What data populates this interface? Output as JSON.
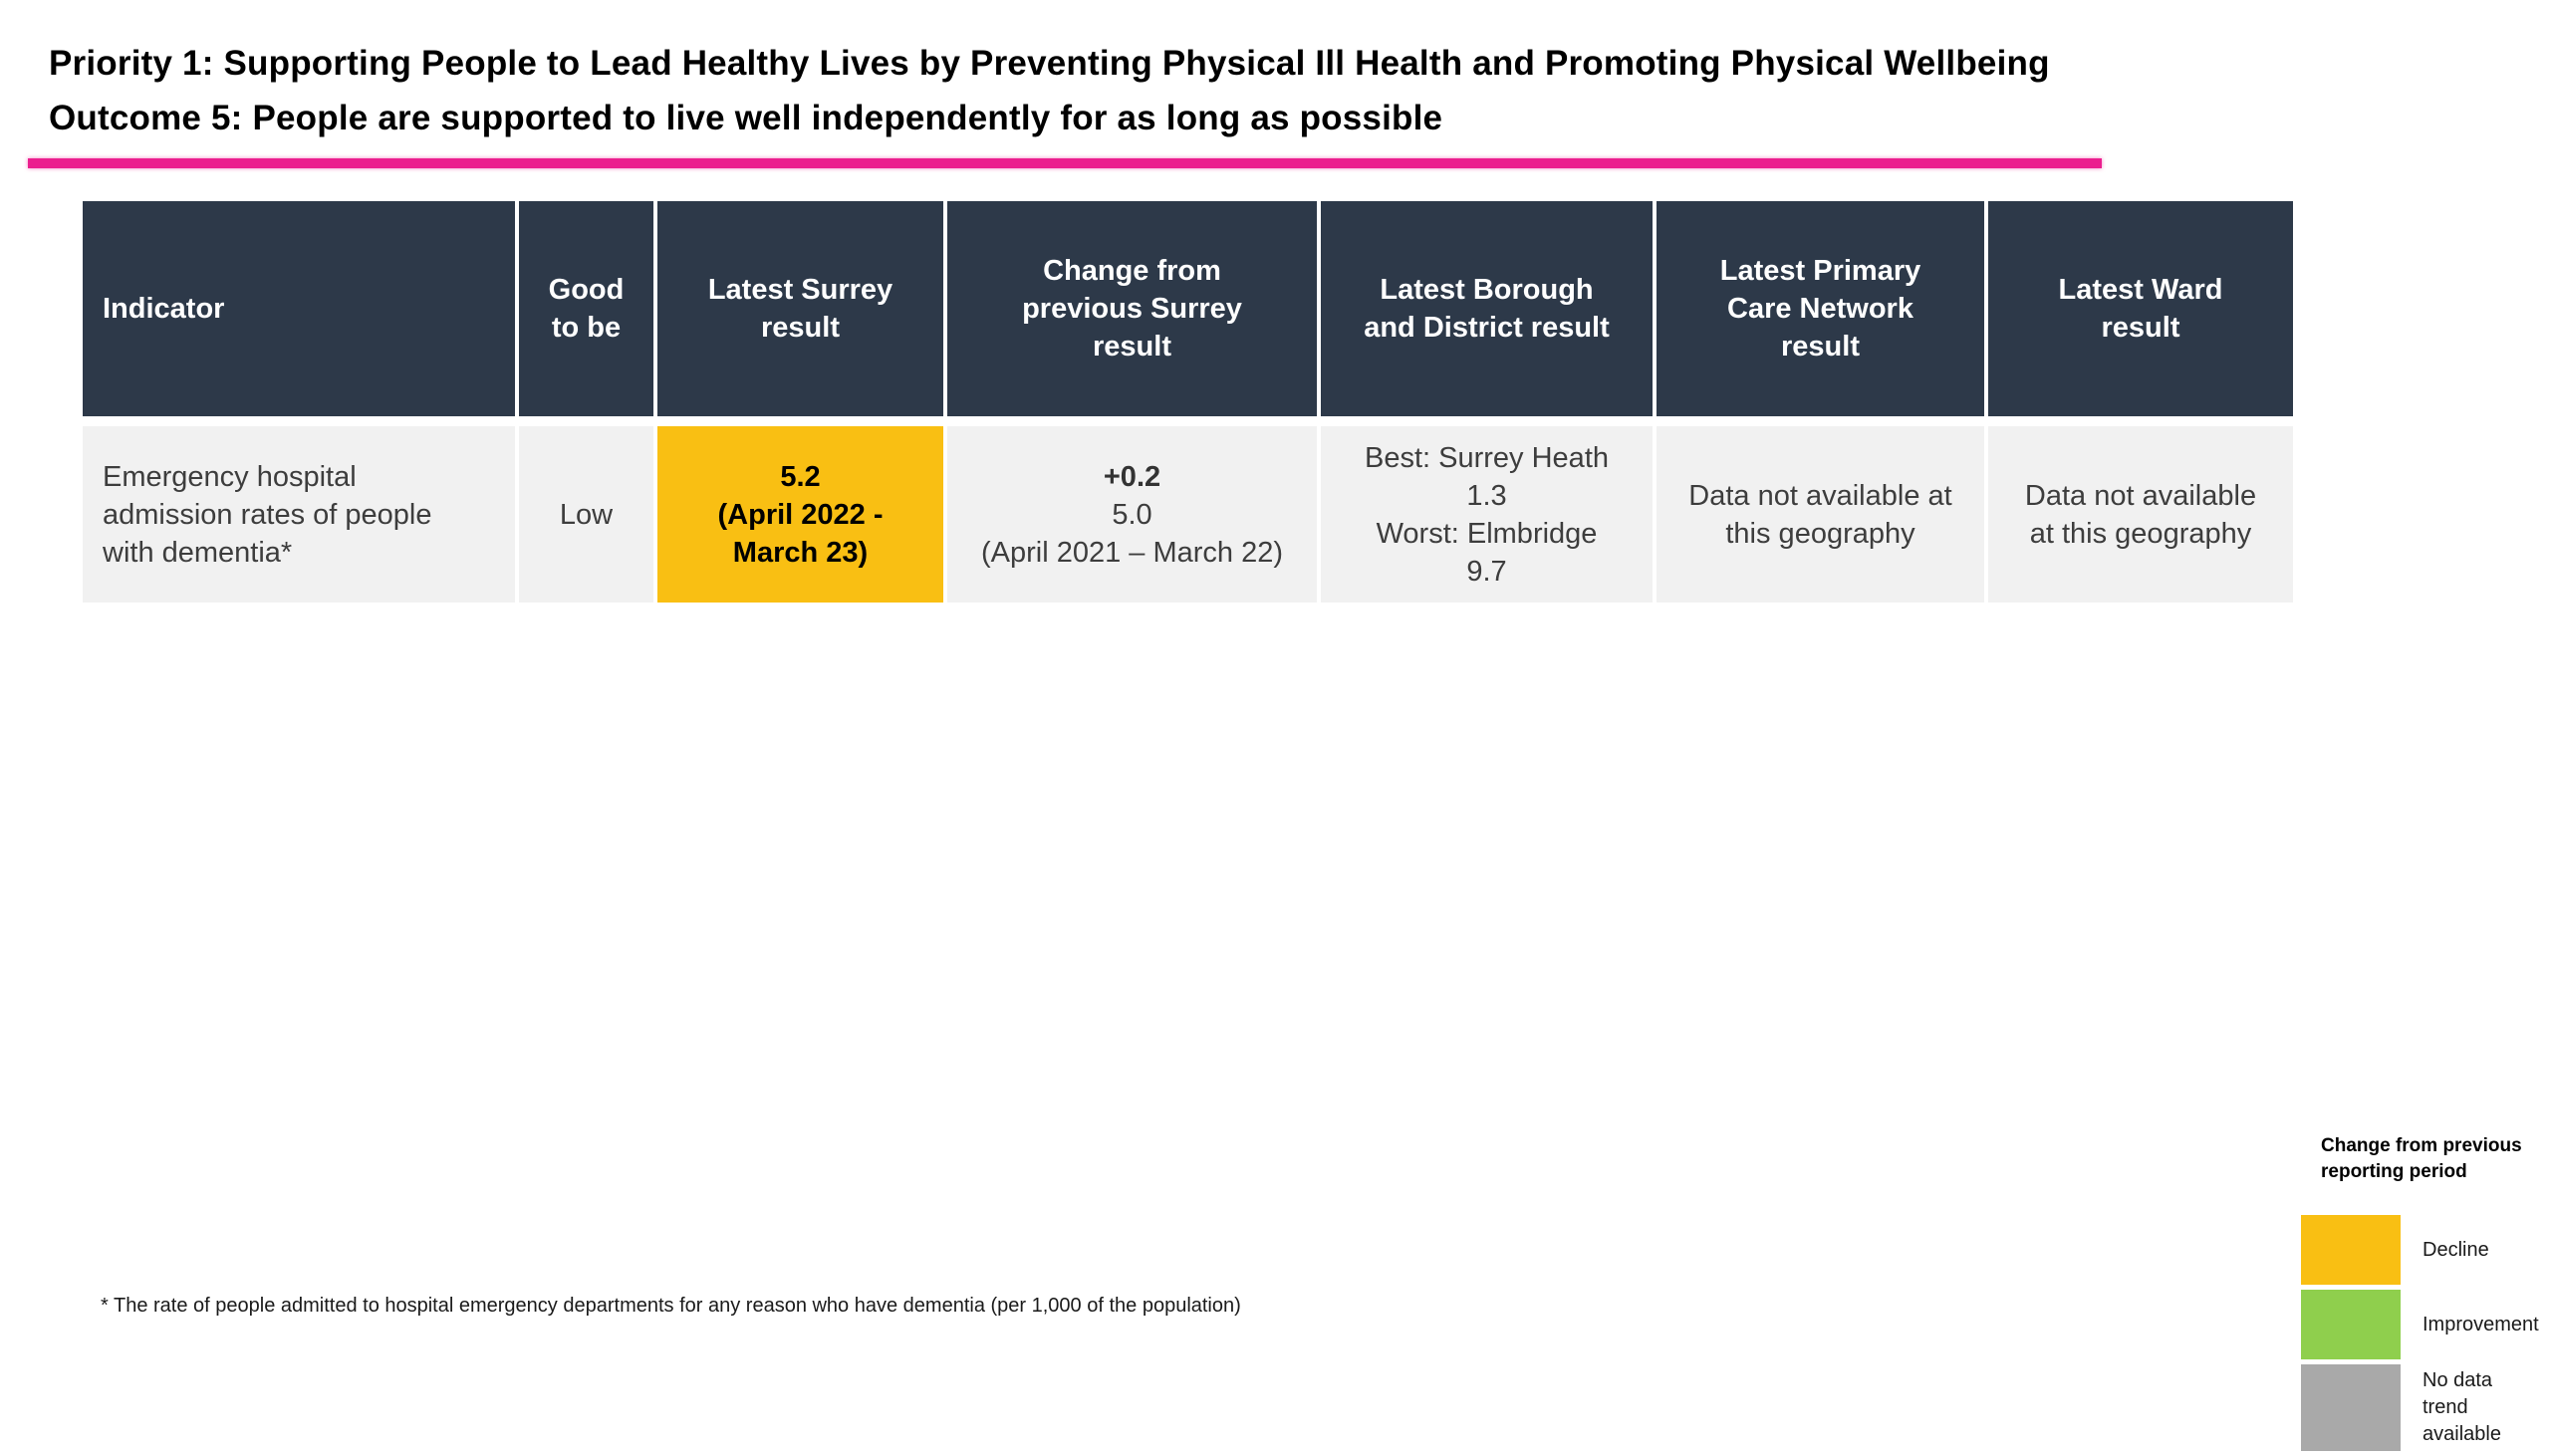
{
  "header": {
    "title_line1": "Priority 1: Supporting People to Lead Healthy Lives by Preventing Physical Ill Health and Promoting Physical Wellbeing",
    "title_line2": "Outcome 5: People are supported to live well independently for as long as possible"
  },
  "colors": {
    "accent_rule": "#EB1E8E",
    "header_background": "#2D3949",
    "row_background": "#F1F1F1",
    "decline": "#F9BF13",
    "improvement": "#8FCF4D",
    "no_data_trend": "#A9A9A9"
  },
  "table": {
    "columns": [
      {
        "label": "Indicator"
      },
      {
        "label": "Good\nto be"
      },
      {
        "label": "Latest Surrey\nresult"
      },
      {
        "label": "Change from\nprevious Surrey\nresult"
      },
      {
        "label": "Latest Borough\nand District result"
      },
      {
        "label": "Latest Primary\nCare Network\nresult"
      },
      {
        "label": "Latest Ward\nresult"
      }
    ],
    "rows": [
      {
        "indicator": "Emergency hospital\nadmission rates of people\nwith dementia*",
        "good_to_be": "Low",
        "latest_surrey": {
          "text": "5.2\n(April 2022 -\nMarch 23)",
          "status": "decline"
        },
        "change_from_previous": {
          "delta": "+0.2",
          "previous": "5.0\n(April 2021 – March 22)"
        },
        "borough_district": "Best: Surrey Heath\n1.3\nWorst: Elmbridge\n9.7",
        "primary_care_network": "Data not available at\nthis geography",
        "ward": "Data not available\nat this geography"
      }
    ]
  },
  "footnote": "* The rate of people admitted to hospital emergency departments for any reason who have dementia (per 1,000 of the population)",
  "legend": {
    "title": "Change from previous\nreporting period",
    "items": [
      {
        "label": "Decline",
        "color": "#F9BF13"
      },
      {
        "label": "Improvement",
        "color": "#8FCF4D"
      },
      {
        "label": "No data\ntrend\navailable",
        "color": "#A9A9A9"
      }
    ]
  }
}
